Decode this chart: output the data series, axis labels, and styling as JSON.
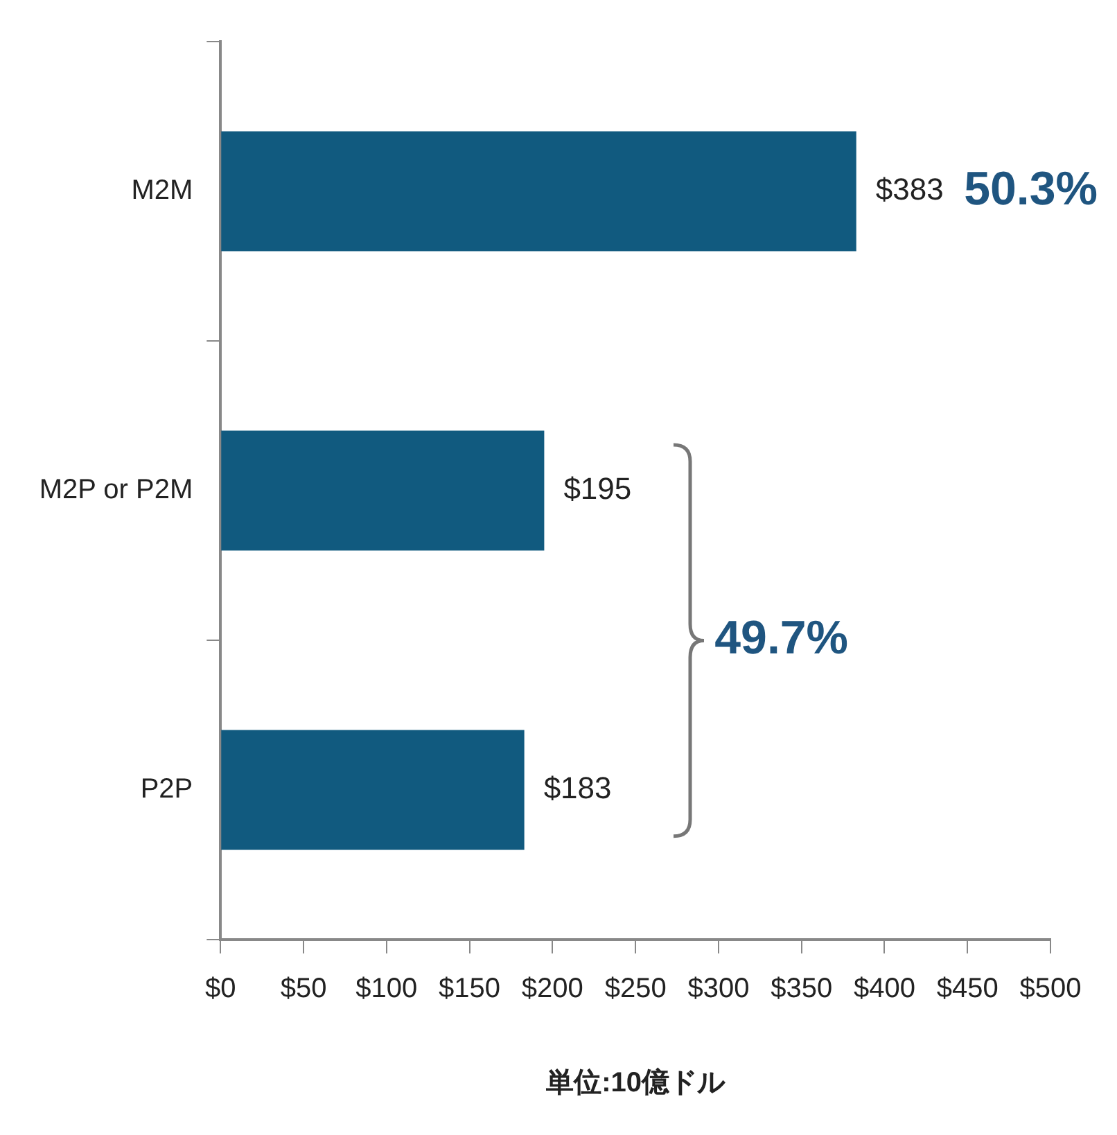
{
  "chart_data": {
    "type": "bar",
    "orientation": "horizontal",
    "categories": [
      "M2M",
      "M2P or P2M",
      "P2P"
    ],
    "values": [
      383,
      195,
      183
    ],
    "color": "#115a7f",
    "value_labels": [
      "$383",
      "$195",
      "$183"
    ],
    "xlim": [
      0,
      500
    ],
    "xticks": [
      {
        "value": 0,
        "label": "$0"
      },
      {
        "value": 50,
        "label": "$50"
      },
      {
        "value": 100,
        "label": "$100"
      },
      {
        "value": 150,
        "label": "$150"
      },
      {
        "value": 200,
        "label": "$200"
      },
      {
        "value": 250,
        "label": "$250"
      },
      {
        "value": 300,
        "label": "$300"
      },
      {
        "value": 350,
        "label": "$350"
      },
      {
        "value": 400,
        "label": "$400"
      },
      {
        "value": 450,
        "label": "$450"
      },
      {
        "value": 500,
        "label": "$500"
      }
    ],
    "xlabel": "単位:10億ドル",
    "annotations": [
      "50.3%",
      "49.7%"
    ],
    "grid": false,
    "legend": false
  }
}
